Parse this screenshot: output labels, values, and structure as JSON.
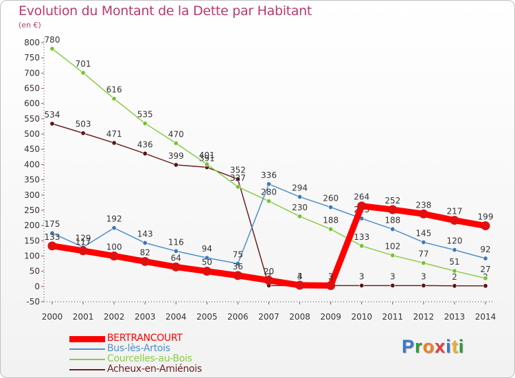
{
  "title": "Evolution du Montant de la Dette par Habitant",
  "unit": "(en €)",
  "chart_data": {
    "type": "line",
    "x": [
      "2000",
      "2001",
      "2002",
      "2003",
      "2004",
      "2005",
      "2006",
      "2007",
      "2008",
      "2009",
      "2010",
      "2011",
      "2012",
      "2013",
      "2014"
    ],
    "ylim": [
      -50,
      800
    ],
    "yticks": [
      -50,
      0,
      50,
      100,
      150,
      200,
      250,
      300,
      350,
      400,
      450,
      500,
      550,
      600,
      650,
      700,
      750,
      800
    ],
    "grid": false,
    "legend_position": "bottom-left",
    "series": [
      {
        "name": "BERTRANCOURT",
        "color": "#ff0000",
        "marker": "#e01010",
        "values": [
          133,
          117,
          100,
          82,
          64,
          50,
          36,
          20,
          4,
          3,
          264,
          252,
          238,
          217,
          199
        ],
        "labels": [
          "133",
          "117",
          "100",
          "82",
          "64",
          "50",
          "36",
          "20",
          "4",
          "3",
          "264",
          "252",
          "238",
          "217",
          "199"
        ]
      },
      {
        "name": "Bus-lès-Artois",
        "color": "#4f8fc8",
        "marker": "#3a7ab8",
        "values": [
          175,
          129,
          192,
          143,
          116,
          94,
          75,
          336,
          294,
          260,
          223,
          188,
          145,
          120,
          92
        ],
        "labels": [
          "175",
          "129",
          "192",
          "143",
          "116",
          "94",
          "75",
          "336",
          "294",
          "260",
          "223",
          "188",
          "145",
          "120",
          "92"
        ]
      },
      {
        "name": "Courcelles-au-Bois",
        "color": "#88cc44",
        "marker": "#77c233",
        "values": [
          780,
          701,
          616,
          535,
          470,
          401,
          327,
          280,
          230,
          188,
          133,
          102,
          77,
          51,
          27
        ],
        "labels": [
          "780",
          "701",
          "616",
          "535",
          "470",
          "401",
          "327",
          "280",
          "230",
          "188",
          "133",
          "102",
          "77",
          "51",
          "27"
        ]
      },
      {
        "name": "Acheux-en-Amiénois",
        "color": "#6b2020",
        "marker": "#5a1515",
        "values": [
          534,
          503,
          471,
          436,
          399,
          391,
          352,
          3,
          3,
          3,
          3,
          3,
          3,
          2,
          2
        ],
        "labels": [
          "534",
          "503",
          "471",
          "436",
          "399",
          "391",
          "352",
          "3",
          "3",
          "3",
          "3",
          "3",
          "3",
          "2",
          "2"
        ]
      }
    ]
  },
  "logo": {
    "text": "Proxiti",
    "colors": [
      "#3a78c8",
      "#2a9a3a",
      "#f08020",
      "#e04040",
      "#3a78c8",
      "#f0b020",
      "#2a9a3a"
    ]
  }
}
